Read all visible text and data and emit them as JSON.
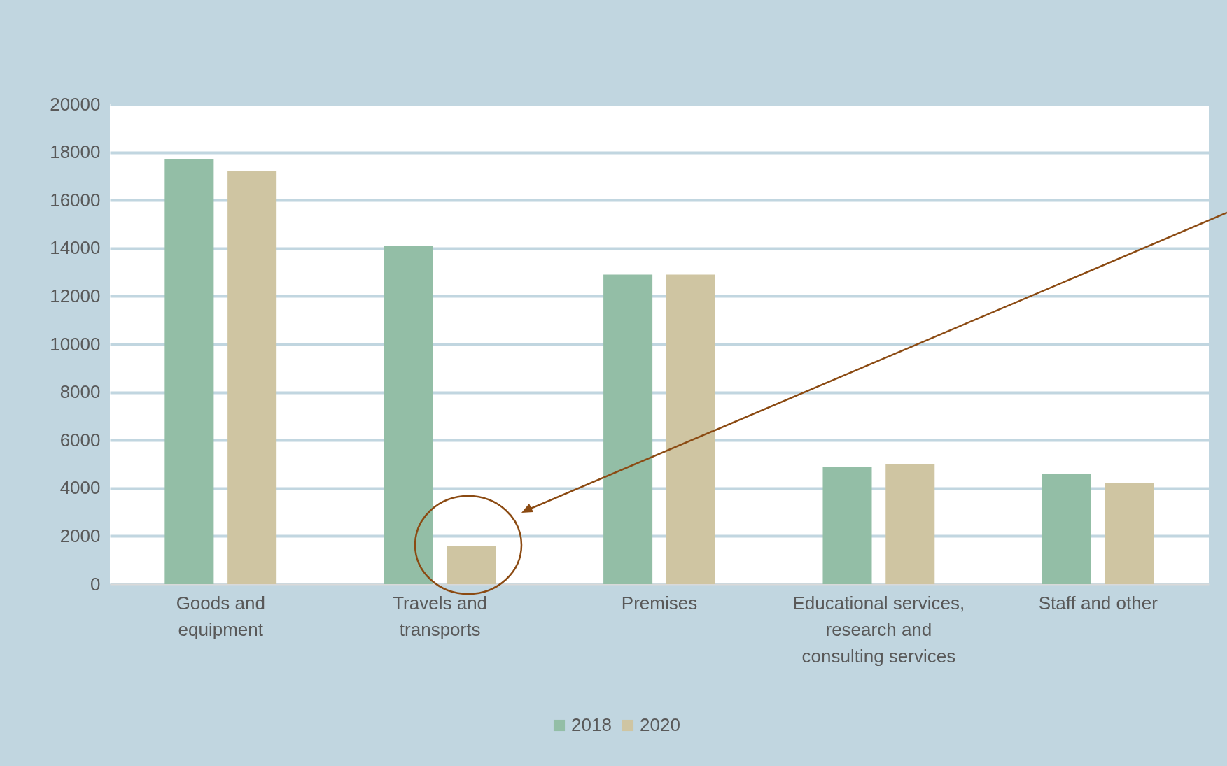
{
  "chart_data": {
    "type": "bar",
    "categories": [
      "Goods and\nequipment",
      "Travels and\ntransports",
      "Premises",
      "Educational services,\nresearch and\nconsulting services",
      "Staff and other"
    ],
    "series": [
      {
        "name": "2018",
        "color": "#93bea6",
        "values": [
          17700,
          14100,
          12900,
          4900,
          4600
        ]
      },
      {
        "name": "2020",
        "color": "#cfc5a2",
        "values": [
          17200,
          1600,
          12900,
          5000,
          4200
        ]
      }
    ],
    "ylim": [
      0,
      20000
    ],
    "yticks": [
      0,
      2000,
      4000,
      6000,
      8000,
      10000,
      12000,
      14000,
      16000,
      18000,
      20000
    ],
    "grid": "y",
    "legend": "bottom"
  }
}
